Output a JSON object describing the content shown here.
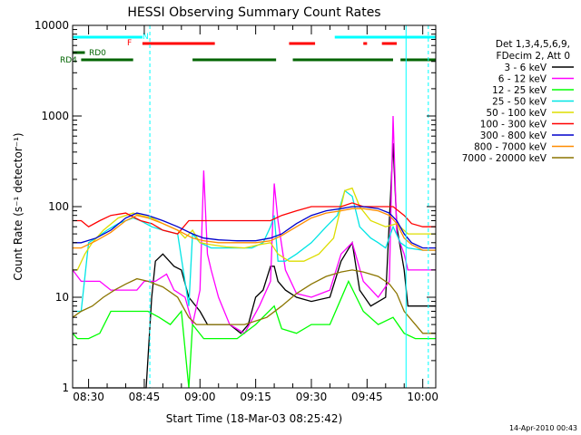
{
  "chart_data": {
    "type": "line",
    "title": "HESSI Observing Summary Count Rates",
    "xlabel": "Start Time (18-Mar-03 08:25:42)",
    "ylabel": "Count Rate (s⁻¹ detector⁻¹)",
    "ylog": true,
    "ylim": [
      1,
      10000
    ],
    "xlim_minutes": [
      25.7,
      123.5
    ],
    "x_ticks": [
      "08:30",
      "08:45",
      "09:00",
      "09:15",
      "09:30",
      "09:45",
      "10:00"
    ],
    "y_ticks": [
      "1",
      "10",
      "100",
      "1000",
      "10000"
    ],
    "timestamp": "14-Apr-2010 00:43",
    "legend_header": [
      "Det 1,3,4,5,6,9,",
      "FDecim 2, Att 0"
    ],
    "legend_position": "right",
    "flags": {
      "N": {
        "color": "#00ffff",
        "segments": [
          [
            25.7,
            44.5
          ],
          [
            96.3,
            123.5
          ]
        ]
      },
      "F": {
        "color": "#ff0000",
        "segments": [
          [
            44.5,
            64
          ],
          [
            84,
            91
          ],
          [
            104,
            105
          ],
          [
            109,
            113
          ]
        ]
      },
      "RD0": {
        "color": "#006400",
        "segments": [
          [
            25.7,
            29
          ]
        ]
      },
      "RD4": {
        "color": "#006400",
        "segments": [
          [
            28,
            42
          ],
          [
            58,
            80.5
          ],
          [
            85,
            112
          ],
          [
            114,
            123.5
          ]
        ]
      }
    },
    "vlines_solid": [
      25.7,
      115.5
    ],
    "vlines_dashed": [
      46.5,
      121.5
    ],
    "series": [
      {
        "name": "3 - 6 keV",
        "color": "#000000",
        "points": [
          [
            25.7,
            1
          ],
          [
            45.5,
            1
          ],
          [
            47,
            10
          ],
          [
            48,
            25
          ],
          [
            50,
            30
          ],
          [
            53,
            22
          ],
          [
            55,
            20
          ],
          [
            57,
            10
          ],
          [
            60,
            7
          ],
          [
            62,
            5
          ],
          [
            64,
            5
          ],
          [
            68,
            5
          ],
          [
            71,
            4
          ],
          [
            73,
            5
          ],
          [
            75,
            10
          ],
          [
            77,
            12
          ],
          [
            79,
            22
          ],
          [
            80,
            22
          ],
          [
            81,
            15
          ],
          [
            83,
            12
          ],
          [
            86,
            10
          ],
          [
            90,
            9
          ],
          [
            95,
            10
          ],
          [
            98,
            25
          ],
          [
            101,
            40
          ],
          [
            103,
            12
          ],
          [
            106,
            8
          ],
          [
            110,
            10
          ],
          [
            112,
            500
          ],
          [
            113,
            60
          ],
          [
            115,
            20
          ],
          [
            116,
            8
          ],
          [
            123.5,
            8
          ]
        ]
      },
      {
        "name": "6 - 12 keV",
        "color": "#ff00ff",
        "points": [
          [
            25.7,
            20
          ],
          [
            28,
            15
          ],
          [
            33,
            15
          ],
          [
            36,
            12
          ],
          [
            40,
            12
          ],
          [
            43,
            12
          ],
          [
            45,
            15
          ],
          [
            48,
            15
          ],
          [
            51,
            18
          ],
          [
            53,
            12
          ],
          [
            56,
            10
          ],
          [
            58,
            5
          ],
          [
            60,
            12
          ],
          [
            61,
            250
          ],
          [
            62,
            30
          ],
          [
            63,
            20
          ],
          [
            65,
            10
          ],
          [
            68,
            5
          ],
          [
            72,
            4
          ],
          [
            76,
            8
          ],
          [
            79,
            15
          ],
          [
            80,
            180
          ],
          [
            81,
            70
          ],
          [
            83,
            20
          ],
          [
            86,
            11
          ],
          [
            90,
            10
          ],
          [
            95,
            12
          ],
          [
            98,
            30
          ],
          [
            101,
            40
          ],
          [
            104,
            15
          ],
          [
            108,
            10
          ],
          [
            111,
            15
          ],
          [
            112,
            1000
          ],
          [
            113,
            50
          ],
          [
            115,
            30
          ],
          [
            116,
            20
          ],
          [
            123.5,
            20
          ]
        ]
      },
      {
        "name": "12 - 25 keV",
        "color": "#00ff00",
        "points": [
          [
            25.7,
            4
          ],
          [
            27,
            3.5
          ],
          [
            30,
            3.5
          ],
          [
            33,
            4
          ],
          [
            36,
            7
          ],
          [
            40,
            7
          ],
          [
            43,
            7
          ],
          [
            46,
            7
          ],
          [
            49,
            6
          ],
          [
            52,
            5
          ],
          [
            55,
            7
          ],
          [
            57,
            1
          ],
          [
            58,
            5
          ],
          [
            61,
            3.5
          ],
          [
            65,
            3.5
          ],
          [
            70,
            3.5
          ],
          [
            75,
            5
          ],
          [
            80,
            8
          ],
          [
            82,
            4.5
          ],
          [
            86,
            4
          ],
          [
            90,
            5
          ],
          [
            95,
            5
          ],
          [
            100,
            15
          ],
          [
            104,
            7
          ],
          [
            108,
            5
          ],
          [
            112,
            6
          ],
          [
            115,
            4
          ],
          [
            118,
            3.5
          ],
          [
            123.5,
            3.5
          ]
        ]
      },
      {
        "name": "25 - 50 keV",
        "color": "#00e5e5",
        "points": [
          [
            25.7,
            7
          ],
          [
            28,
            7
          ],
          [
            30,
            40
          ],
          [
            32,
            45
          ],
          [
            35,
            55
          ],
          [
            38,
            65
          ],
          [
            42,
            75
          ],
          [
            44,
            70
          ],
          [
            47,
            60
          ],
          [
            50,
            55
          ],
          [
            54,
            50
          ],
          [
            57,
            8
          ],
          [
            58,
            50
          ],
          [
            60,
            40
          ],
          [
            63,
            35
          ],
          [
            66,
            35
          ],
          [
            70,
            35
          ],
          [
            74,
            35
          ],
          [
            77,
            40
          ],
          [
            79,
            60
          ],
          [
            80,
            80
          ],
          [
            81,
            25
          ],
          [
            83,
            25
          ],
          [
            86,
            30
          ],
          [
            90,
            40
          ],
          [
            94,
            60
          ],
          [
            97,
            80
          ],
          [
            99,
            150
          ],
          [
            101,
            130
          ],
          [
            103,
            60
          ],
          [
            106,
            45
          ],
          [
            108,
            40
          ],
          [
            110,
            35
          ],
          [
            112,
            60
          ],
          [
            114,
            40
          ],
          [
            116,
            35
          ],
          [
            120,
            33
          ],
          [
            123.5,
            33
          ]
        ]
      },
      {
        "name": "50 - 100 keV",
        "color": "#dddd00",
        "points": [
          [
            25.7,
            20
          ],
          [
            27,
            20
          ],
          [
            29,
            30
          ],
          [
            31,
            40
          ],
          [
            34,
            55
          ],
          [
            38,
            75
          ],
          [
            42,
            85
          ],
          [
            44,
            80
          ],
          [
            47,
            75
          ],
          [
            50,
            65
          ],
          [
            54,
            55
          ],
          [
            56,
            45
          ],
          [
            58,
            55
          ],
          [
            60,
            40
          ],
          [
            63,
            38
          ],
          [
            67,
            36
          ],
          [
            72,
            35
          ],
          [
            76,
            38
          ],
          [
            79,
            40
          ],
          [
            81,
            30
          ],
          [
            84,
            25
          ],
          [
            88,
            25
          ],
          [
            92,
            30
          ],
          [
            96,
            45
          ],
          [
            99,
            150
          ],
          [
            101,
            160
          ],
          [
            103,
            100
          ],
          [
            106,
            70
          ],
          [
            110,
            60
          ],
          [
            113,
            65
          ],
          [
            116,
            50
          ],
          [
            120,
            50
          ],
          [
            123.5,
            50
          ]
        ]
      },
      {
        "name": "100 - 300 keV",
        "color": "#ff0000",
        "points": [
          [
            25.7,
            70
          ],
          [
            28,
            70
          ],
          [
            30,
            60
          ],
          [
            33,
            70
          ],
          [
            36,
            80
          ],
          [
            40,
            85
          ],
          [
            44,
            70
          ],
          [
            47,
            65
          ],
          [
            50,
            55
          ],
          [
            54,
            50
          ],
          [
            57,
            70
          ],
          [
            62,
            70
          ],
          [
            68,
            70
          ],
          [
            74,
            70
          ],
          [
            79,
            70
          ],
          [
            82,
            80
          ],
          [
            86,
            90
          ],
          [
            90,
            100
          ],
          [
            94,
            100
          ],
          [
            98,
            100
          ],
          [
            101,
            110
          ],
          [
            104,
            100
          ],
          [
            108,
            100
          ],
          [
            112,
            100
          ],
          [
            115,
            80
          ],
          [
            117,
            65
          ],
          [
            120,
            60
          ],
          [
            123.5,
            60
          ]
        ]
      },
      {
        "name": "300 - 800 keV",
        "color": "#0000cc",
        "points": [
          [
            25.7,
            40
          ],
          [
            28,
            40
          ],
          [
            32,
            45
          ],
          [
            36,
            55
          ],
          [
            40,
            75
          ],
          [
            43,
            85
          ],
          [
            46,
            80
          ],
          [
            50,
            70
          ],
          [
            54,
            60
          ],
          [
            58,
            50
          ],
          [
            61,
            45
          ],
          [
            65,
            43
          ],
          [
            70,
            42
          ],
          [
            75,
            42
          ],
          [
            79,
            45
          ],
          [
            82,
            50
          ],
          [
            86,
            65
          ],
          [
            90,
            80
          ],
          [
            94,
            90
          ],
          [
            98,
            95
          ],
          [
            101,
            100
          ],
          [
            104,
            100
          ],
          [
            108,
            95
          ],
          [
            111,
            85
          ],
          [
            113,
            70
          ],
          [
            115,
            50
          ],
          [
            117,
            40
          ],
          [
            120,
            35
          ],
          [
            123.5,
            35
          ]
        ]
      },
      {
        "name": "800 - 7000 keV",
        "color": "#ff8c00",
        "points": [
          [
            25.7,
            35
          ],
          [
            28,
            35
          ],
          [
            32,
            42
          ],
          [
            36,
            52
          ],
          [
            40,
            70
          ],
          [
            43,
            80
          ],
          [
            46,
            75
          ],
          [
            50,
            65
          ],
          [
            54,
            55
          ],
          [
            58,
            45
          ],
          [
            61,
            42
          ],
          [
            65,
            40
          ],
          [
            70,
            40
          ],
          [
            75,
            40
          ],
          [
            79,
            42
          ],
          [
            82,
            48
          ],
          [
            86,
            60
          ],
          [
            90,
            75
          ],
          [
            94,
            85
          ],
          [
            98,
            90
          ],
          [
            101,
            95
          ],
          [
            104,
            95
          ],
          [
            108,
            90
          ],
          [
            111,
            80
          ],
          [
            113,
            65
          ],
          [
            115,
            45
          ],
          [
            117,
            38
          ],
          [
            120,
            33
          ],
          [
            123.5,
            33
          ]
        ]
      },
      {
        "name": "7000 - 20000 keV",
        "color": "#8b7500",
        "points": [
          [
            25.7,
            6
          ],
          [
            28,
            7
          ],
          [
            31,
            8
          ],
          [
            34,
            10
          ],
          [
            37,
            12
          ],
          [
            40,
            14
          ],
          [
            43,
            16
          ],
          [
            46,
            15
          ],
          [
            50,
            13
          ],
          [
            54,
            10
          ],
          [
            57,
            6
          ],
          [
            59,
            5
          ],
          [
            62,
            5
          ],
          [
            66,
            5
          ],
          [
            72,
            5
          ],
          [
            78,
            6
          ],
          [
            82,
            8
          ],
          [
            86,
            11
          ],
          [
            90,
            14
          ],
          [
            94,
            17
          ],
          [
            98,
            19
          ],
          [
            101,
            20
          ],
          [
            104,
            19
          ],
          [
            108,
            17
          ],
          [
            111,
            14
          ],
          [
            113,
            11
          ],
          [
            115,
            7
          ],
          [
            118,
            5
          ],
          [
            120,
            4
          ],
          [
            123.5,
            4
          ]
        ]
      }
    ]
  }
}
